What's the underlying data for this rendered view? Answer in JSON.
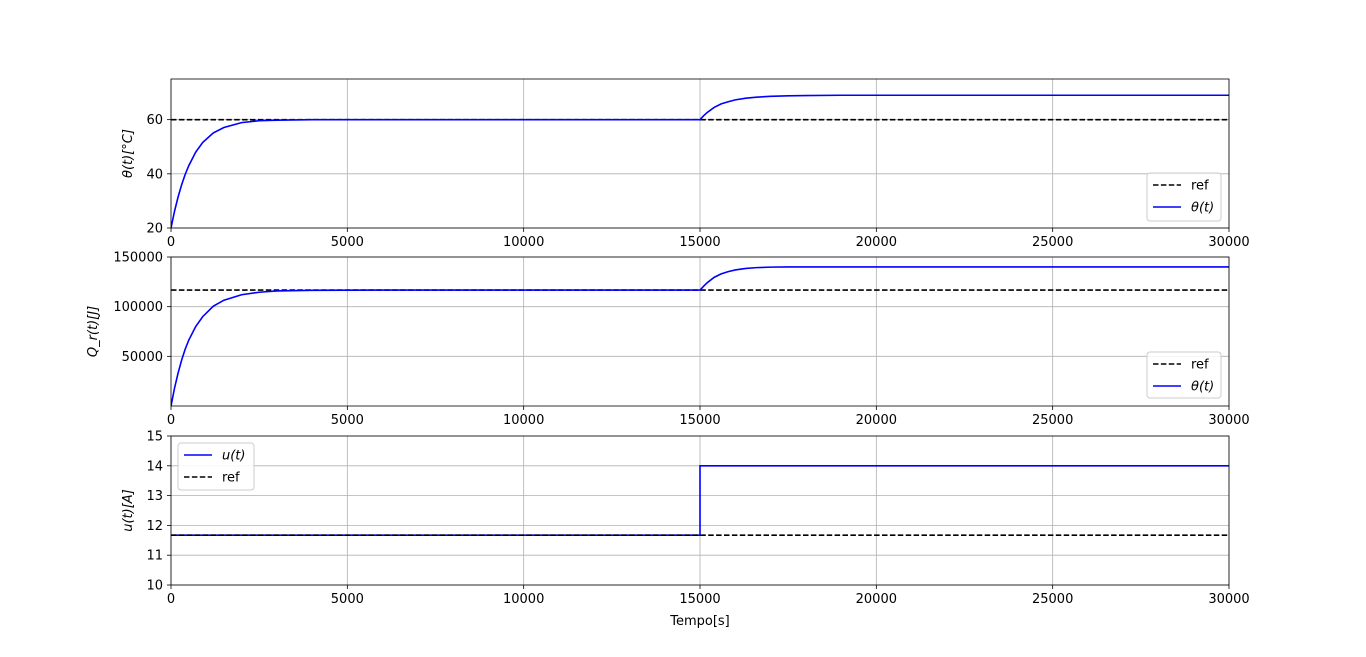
{
  "chart_data": [
    {
      "type": "line",
      "ylabel": "θ(t)[°C]",
      "xlim": [
        0,
        30000
      ],
      "ylim": [
        20,
        75
      ],
      "xticks": [
        "0",
        "5000",
        "10000",
        "15000",
        "20000",
        "25000",
        "30000"
      ],
      "yticks": [
        "20",
        "40",
        "60"
      ],
      "grid": true,
      "legend_position": "lower right",
      "series": [
        {
          "name": "ref",
          "style": "dashed",
          "color": "#000000",
          "x": [
            0,
            30000
          ],
          "y": [
            60,
            60
          ]
        },
        {
          "name": "θ(t)",
          "style": "solid",
          "color": "#0000ff",
          "x": [
            0,
            100,
            200,
            300,
            400,
            500,
            700,
            900,
            1200,
            1500,
            2000,
            2500,
            3000,
            4000,
            6000,
            10000,
            15000,
            15100,
            15200,
            15400,
            15600,
            15800,
            16000,
            16300,
            16600,
            17000,
            17500,
            18000,
            19000,
            20000,
            30000
          ],
          "y": [
            20,
            26.2,
            31.4,
            35.9,
            39.7,
            42.9,
            48.0,
            51.6,
            55.1,
            57.1,
            58.9,
            59.6,
            59.8,
            60.0,
            60.0,
            60.0,
            60.0,
            61.4,
            62.6,
            64.5,
            65.8,
            66.6,
            67.3,
            67.9,
            68.3,
            68.6,
            68.8,
            68.9,
            69.0,
            69.0,
            69.0
          ]
        }
      ]
    },
    {
      "type": "line",
      "ylabel": "Q_r(t)[J]",
      "xlim": [
        0,
        30000
      ],
      "ylim": [
        0,
        150000
      ],
      "xticks": [
        "0",
        "5000",
        "10000",
        "15000",
        "20000",
        "25000",
        "30000"
      ],
      "yticks": [
        "50000",
        "100000",
        "150000"
      ],
      "grid": true,
      "legend_position": "lower right",
      "series": [
        {
          "name": "ref",
          "style": "dashed",
          "color": "#000000",
          "x": [
            0,
            30000
          ],
          "y": [
            116667,
            116667
          ]
        },
        {
          "name": "θ(t)",
          "style": "solid",
          "color": "#0000ff",
          "x": [
            0,
            100,
            200,
            300,
            400,
            500,
            700,
            900,
            1200,
            1500,
            2000,
            2500,
            3000,
            4000,
            6000,
            10000,
            15000,
            15100,
            15200,
            15400,
            15600,
            15800,
            16000,
            16300,
            16600,
            17000,
            17500,
            18000,
            19000,
            20000,
            30000
          ],
          "y": [
            0,
            18000,
            33000,
            46000,
            57000,
            66000,
            80000,
            90000,
            100500,
            106500,
            112000,
            114500,
            115800,
            116500,
            116667,
            116667,
            116667,
            120500,
            124000,
            129500,
            133000,
            135300,
            137000,
            138500,
            139300,
            139800,
            140000,
            140000,
            140000,
            140000,
            140000
          ]
        }
      ]
    },
    {
      "type": "line",
      "ylabel": "u(t)[A]",
      "xlabel": "Tempo[s]",
      "xlim": [
        0,
        30000
      ],
      "ylim": [
        10,
        15
      ],
      "xticks": [
        "0",
        "5000",
        "10000",
        "15000",
        "20000",
        "25000",
        "30000"
      ],
      "yticks": [
        "10",
        "11",
        "12",
        "13",
        "14",
        "15"
      ],
      "grid": true,
      "legend_position": "upper left",
      "series": [
        {
          "name": "u(t)",
          "style": "solid",
          "color": "#0000ff",
          "x": [
            0,
            15000,
            15000,
            30000
          ],
          "y": [
            11.67,
            11.67,
            14.0,
            14.0
          ]
        },
        {
          "name": "ref",
          "style": "dashed",
          "color": "#000000",
          "x": [
            0,
            30000
          ],
          "y": [
            11.67,
            11.67
          ]
        }
      ]
    }
  ]
}
